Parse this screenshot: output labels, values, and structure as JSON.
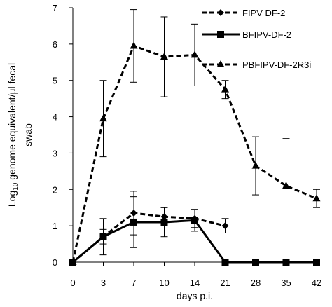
{
  "chart_data": {
    "type": "line",
    "x_ticks": [
      "0",
      "3",
      "7",
      "10",
      "14",
      "21",
      "28",
      "35",
      "42"
    ],
    "xlabel": "days p.i.",
    "ylabel_line1_prefix": "Log",
    "ylabel_line1_sub": "10",
    "ylabel_line1_rest": " genome equivalent/µl fecal",
    "ylabel_line2": "swab",
    "ylim": [
      0,
      7
    ],
    "y_ticks": [
      "0",
      "1",
      "2",
      "3",
      "4",
      "5",
      "6",
      "7"
    ],
    "grid": false,
    "legend_position": "top-right",
    "series": [
      {
        "name": "FIPV DF-2",
        "marker": "diamond",
        "line": "dashed",
        "x": [
          "0",
          "3",
          "7",
          "10",
          "14",
          "21"
        ],
        "y": [
          0,
          0.7,
          1.35,
          1.25,
          1.2,
          1.0
        ],
        "err": [
          0,
          0.2,
          0.6,
          0.25,
          0.25,
          0.2
        ]
      },
      {
        "name": "BFIPV-DF-2",
        "marker": "square",
        "line": "solid",
        "x": [
          "0",
          "3",
          "7",
          "10",
          "14",
          "21",
          "28",
          "35",
          "42"
        ],
        "y": [
          0,
          0.7,
          1.1,
          1.1,
          1.15,
          0,
          0,
          0,
          0
        ],
        "err": [
          0,
          0.5,
          0.7,
          0.4,
          0.3,
          0,
          0,
          0,
          0
        ]
      },
      {
        "name": "PBFIPV-DF-2R3i",
        "marker": "triangle",
        "line": "dashed",
        "x": [
          "0",
          "3",
          "7",
          "10",
          "14",
          "21",
          "28",
          "35",
          "42"
        ],
        "y": [
          0,
          3.95,
          5.95,
          5.65,
          5.7,
          4.75,
          2.65,
          2.1,
          1.75
        ],
        "err": [
          0,
          1.05,
          1.0,
          1.1,
          0.85,
          0.25,
          0.8,
          1.3,
          0.25
        ]
      }
    ]
  }
}
